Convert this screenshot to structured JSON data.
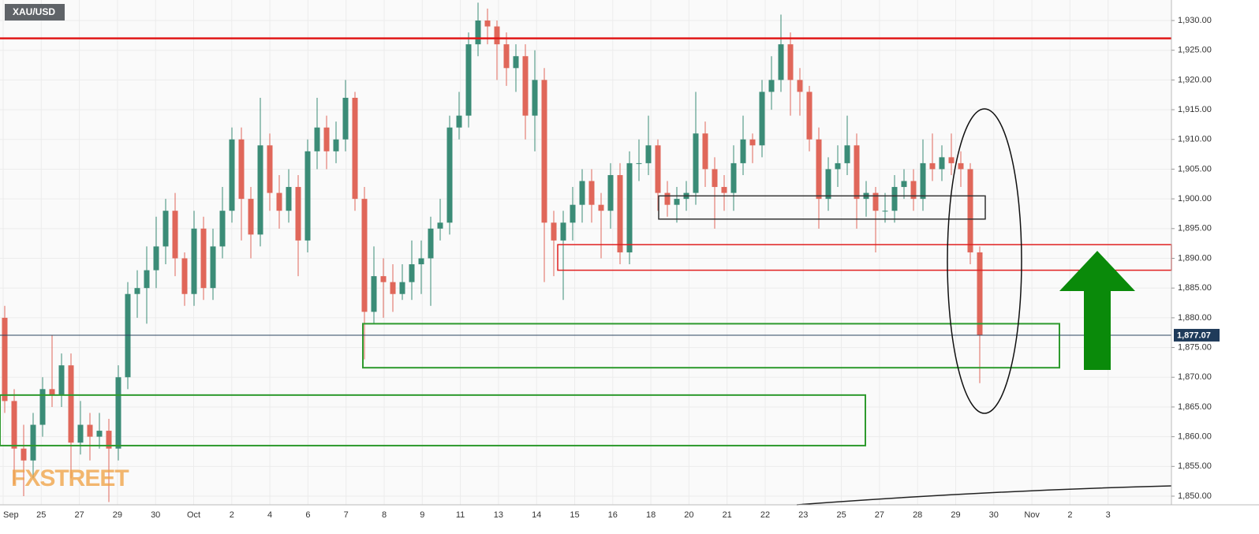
{
  "chart_data": {
    "type": "candlestick",
    "title": "XAU/USD",
    "watermark": "FXSTREET",
    "up_color": "#3b8c77",
    "down_color": "#e0675a",
    "grid": true,
    "ylim": [
      1850,
      1930
    ],
    "yticks": [
      {
        "value": 1850,
        "label": "1,850.00"
      },
      {
        "value": 1855,
        "label": "1,855.00"
      },
      {
        "value": 1860,
        "label": "1,860.00"
      },
      {
        "value": 1865,
        "label": "1,865.00"
      },
      {
        "value": 1870,
        "label": "1,870.00"
      },
      {
        "value": 1875,
        "label": "1,875.00"
      },
      {
        "value": 1880,
        "label": "1,880.00"
      },
      {
        "value": 1885,
        "label": "1,885.00"
      },
      {
        "value": 1890,
        "label": "1,890.00"
      },
      {
        "value": 1895,
        "label": "1,895.00"
      },
      {
        "value": 1900,
        "label": "1,900.00"
      },
      {
        "value": 1905,
        "label": "1,905.00"
      },
      {
        "value": 1910,
        "label": "1,910.00"
      },
      {
        "value": 1915,
        "label": "1,915.00"
      },
      {
        "value": 1920,
        "label": "1,920.00"
      },
      {
        "value": 1925,
        "label": "1,925.00"
      },
      {
        "value": 1930,
        "label": "1,930.00"
      }
    ],
    "x_labels": [
      "Sep",
      "25",
      "27",
      "29",
      "30",
      "Oct",
      "2",
      "4",
      "6",
      "7",
      "8",
      "9",
      "11",
      "13",
      "14",
      "15",
      "16",
      "18",
      "20",
      "21",
      "22",
      "23",
      "25",
      "27",
      "28",
      "29",
      "30",
      "Nov",
      "2",
      "3"
    ],
    "open": [
      1880,
      1866,
      1858,
      1856,
      1862,
      1868,
      1867,
      1872,
      1859,
      1862,
      1860,
      1861,
      1858,
      1870,
      1884,
      1885,
      1888,
      1892,
      1898,
      1890,
      1884,
      1895,
      1885,
      1892,
      1898,
      1910,
      1900,
      1894,
      1909,
      1901,
      1898,
      1902,
      1893,
      1908,
      1912,
      1908,
      1910,
      1917,
      1900,
      1881,
      1887,
      1886,
      1884,
      1886,
      1889,
      1890,
      1895,
      1896,
      1912,
      1914,
      1926,
      1930,
      1929,
      1926,
      1922,
      1924,
      1914,
      1920,
      1896,
      1893,
      1896,
      1899,
      1903,
      1899,
      1898,
      1904,
      1891,
      1906,
      1906,
      1909,
      1901,
      1899,
      1900,
      1901,
      1911,
      1905,
      1902,
      1901,
      1906,
      1910,
      1909,
      1918,
      1920,
      1926,
      1920,
      1918,
      1910,
      1900,
      1905,
      1906,
      1909,
      1900,
      1901,
      1898,
      1898,
      1902,
      1903,
      1900,
      1906,
      1905,
      1907,
      1906,
      1905,
      1891
    ],
    "high": [
      1882,
      1868,
      1862,
      1864,
      1870,
      1877,
      1874,
      1874,
      1866,
      1864,
      1864,
      1863,
      1872,
      1886,
      1888,
      1892,
      1897,
      1900,
      1901,
      1891,
      1898,
      1897,
      1895,
      1902,
      1912,
      1912,
      1902,
      1917,
      1911,
      1904,
      1905,
      1904,
      1910,
      1917,
      1914,
      1913,
      1920,
      1918,
      1902,
      1892,
      1890,
      1889,
      1889,
      1893,
      1893,
      1897,
      1900,
      1914,
      1918,
      1928,
      1933,
      1932,
      1930,
      1928,
      1926,
      1926,
      1925,
      1922,
      1898,
      1898,
      1902,
      1905,
      1905,
      1901,
      1906,
      1906,
      1908,
      1910,
      1914,
      1910,
      1903,
      1902,
      1903,
      1918,
      1913,
      1907,
      1904,
      1909,
      1914,
      1911,
      1920,
      1924,
      1931,
      1928,
      1922,
      1919,
      1912,
      1907,
      1909,
      1914,
      1911,
      1903,
      1902,
      1901,
      1904,
      1905,
      1905,
      1910,
      1911,
      1909,
      1911,
      1908,
      1906,
      1892
    ],
    "low": [
      1864,
      1852,
      1850,
      1853,
      1860,
      1865,
      1865,
      1853,
      1857,
      1856,
      1858,
      1849,
      1856,
      1868,
      1880,
      1879,
      1885,
      1889,
      1887,
      1882,
      1882,
      1883,
      1883,
      1890,
      1896,
      1893,
      1890,
      1892,
      1898,
      1895,
      1896,
      1887,
      1891,
      1905,
      1905,
      1906,
      1908,
      1898,
      1873,
      1879,
      1880,
      1881,
      1883,
      1883,
      1884,
      1882,
      1893,
      1894,
      1910,
      1912,
      1924,
      1926,
      1920,
      1919,
      1918,
      1910,
      1908,
      1886,
      1887,
      1883,
      1893,
      1896,
      1896,
      1890,
      1895,
      1889,
      1889,
      1903,
      1904,
      1898,
      1897,
      1896,
      1898,
      1899,
      1902,
      1895,
      1898,
      1898,
      1904,
      1906,
      1907,
      1915,
      1918,
      1914,
      1914,
      1908,
      1895,
      1898,
      1902,
      1904,
      1895,
      1897,
      1891,
      1896,
      1896,
      1900,
      1898,
      1898,
      1903,
      1903,
      1904,
      1902,
      1889,
      1869
    ],
    "close": [
      1866,
      1858,
      1856,
      1862,
      1868,
      1867,
      1872,
      1859,
      1862,
      1860,
      1861,
      1858,
      1870,
      1884,
      1885,
      1888,
      1892,
      1898,
      1890,
      1884,
      1895,
      1885,
      1892,
      1898,
      1910,
      1900,
      1894,
      1909,
      1901,
      1898,
      1902,
      1893,
      1908,
      1912,
      1908,
      1910,
      1917,
      1900,
      1881,
      1887,
      1886,
      1884,
      1886,
      1889,
      1890,
      1895,
      1896,
      1912,
      1914,
      1926,
      1930,
      1929,
      1926,
      1922,
      1924,
      1914,
      1920,
      1896,
      1893,
      1896,
      1899,
      1903,
      1899,
      1898,
      1904,
      1891,
      1906,
      1906,
      1909,
      1901,
      1899,
      1900,
      1901,
      1911,
      1905,
      1902,
      1901,
      1906,
      1910,
      1909,
      1918,
      1920,
      1926,
      1920,
      1918,
      1910,
      1900,
      1905,
      1906,
      1909,
      1900,
      1901,
      1898,
      1898,
      1902,
      1903,
      1900,
      1906,
      1905,
      1907,
      1906,
      1905,
      1891,
      1877.07
    ],
    "current_price": {
      "value": 1877.07,
      "label": "1,877.07"
    },
    "resistance": 1927,
    "zones": [
      {
        "color": "#333333",
        "top": 1900.5,
        "bottom": 1896.6
      },
      {
        "color": "#e02020",
        "top": 1892.3,
        "bottom": 1888
      },
      {
        "color": "#2e9a2e",
        "top": 1879,
        "bottom": 1871.6
      },
      {
        "color": "#2e9a2e",
        "top": 1867,
        "bottom": 1858.5
      }
    ]
  }
}
